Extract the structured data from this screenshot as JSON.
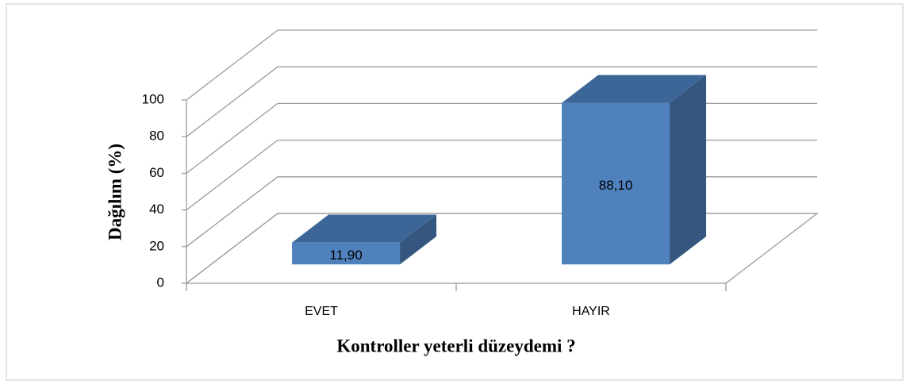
{
  "chart_data": {
    "type": "bar3d",
    "categories": [
      "EVET",
      "HAYIR"
    ],
    "values": [
      11.9,
      88.1
    ],
    "value_labels": [
      "11,90",
      "88,10"
    ],
    "color": "#4f81bd",
    "ylim": [
      0,
      100
    ],
    "yticks": [
      0,
      20,
      40,
      60,
      80,
      100
    ],
    "ylabel": "Dağılım (%)",
    "xlabel": "Kontroller yeterli düzeydemi ?",
    "grid": true
  }
}
